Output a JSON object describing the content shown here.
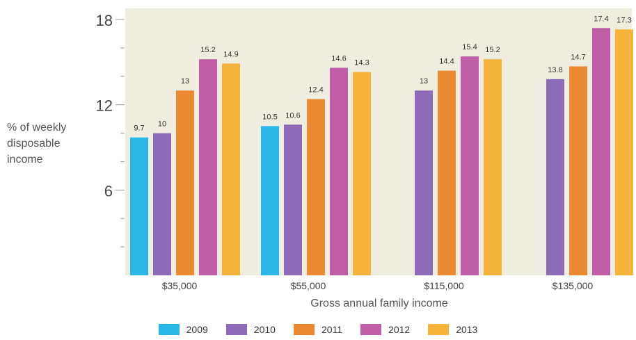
{
  "chart_data": {
    "type": "bar",
    "xlabel": "Gross annual family income",
    "ylabel": "% of weekly disposable income",
    "ylabel_lines": [
      "% of weekly",
      "disposable",
      "income"
    ],
    "ylim": [
      0,
      18
    ],
    "yticks": [
      {
        "value": 6,
        "label": "6"
      },
      {
        "value": 12,
        "label": "12"
      },
      {
        "value": 18,
        "label": "18"
      }
    ],
    "yminor_ticks": [
      2,
      4,
      8,
      10,
      14,
      16
    ],
    "categories": [
      "$35,000",
      "$55,000",
      "$115,000",
      "$135,000"
    ],
    "series": [
      {
        "name": "2009",
        "color": "#2bb6e8",
        "values": [
          9.7,
          10.5,
          null,
          null
        ]
      },
      {
        "name": "2010",
        "color": "#8e6bb8",
        "values": [
          10,
          10.6,
          13,
          13.8
        ]
      },
      {
        "name": "2011",
        "color": "#ec8a33",
        "values": [
          13,
          12.4,
          14.4,
          14.7
        ]
      },
      {
        "name": "2012",
        "color": "#c05fa8",
        "values": [
          15.2,
          14.6,
          15.4,
          17.4
        ]
      },
      {
        "name": "2013",
        "color": "#f6b53a",
        "values": [
          14.9,
          14.3,
          15.2,
          17.3
        ]
      }
    ],
    "grid": false,
    "legend": "bottom",
    "plot_background": "#eeeddf"
  }
}
